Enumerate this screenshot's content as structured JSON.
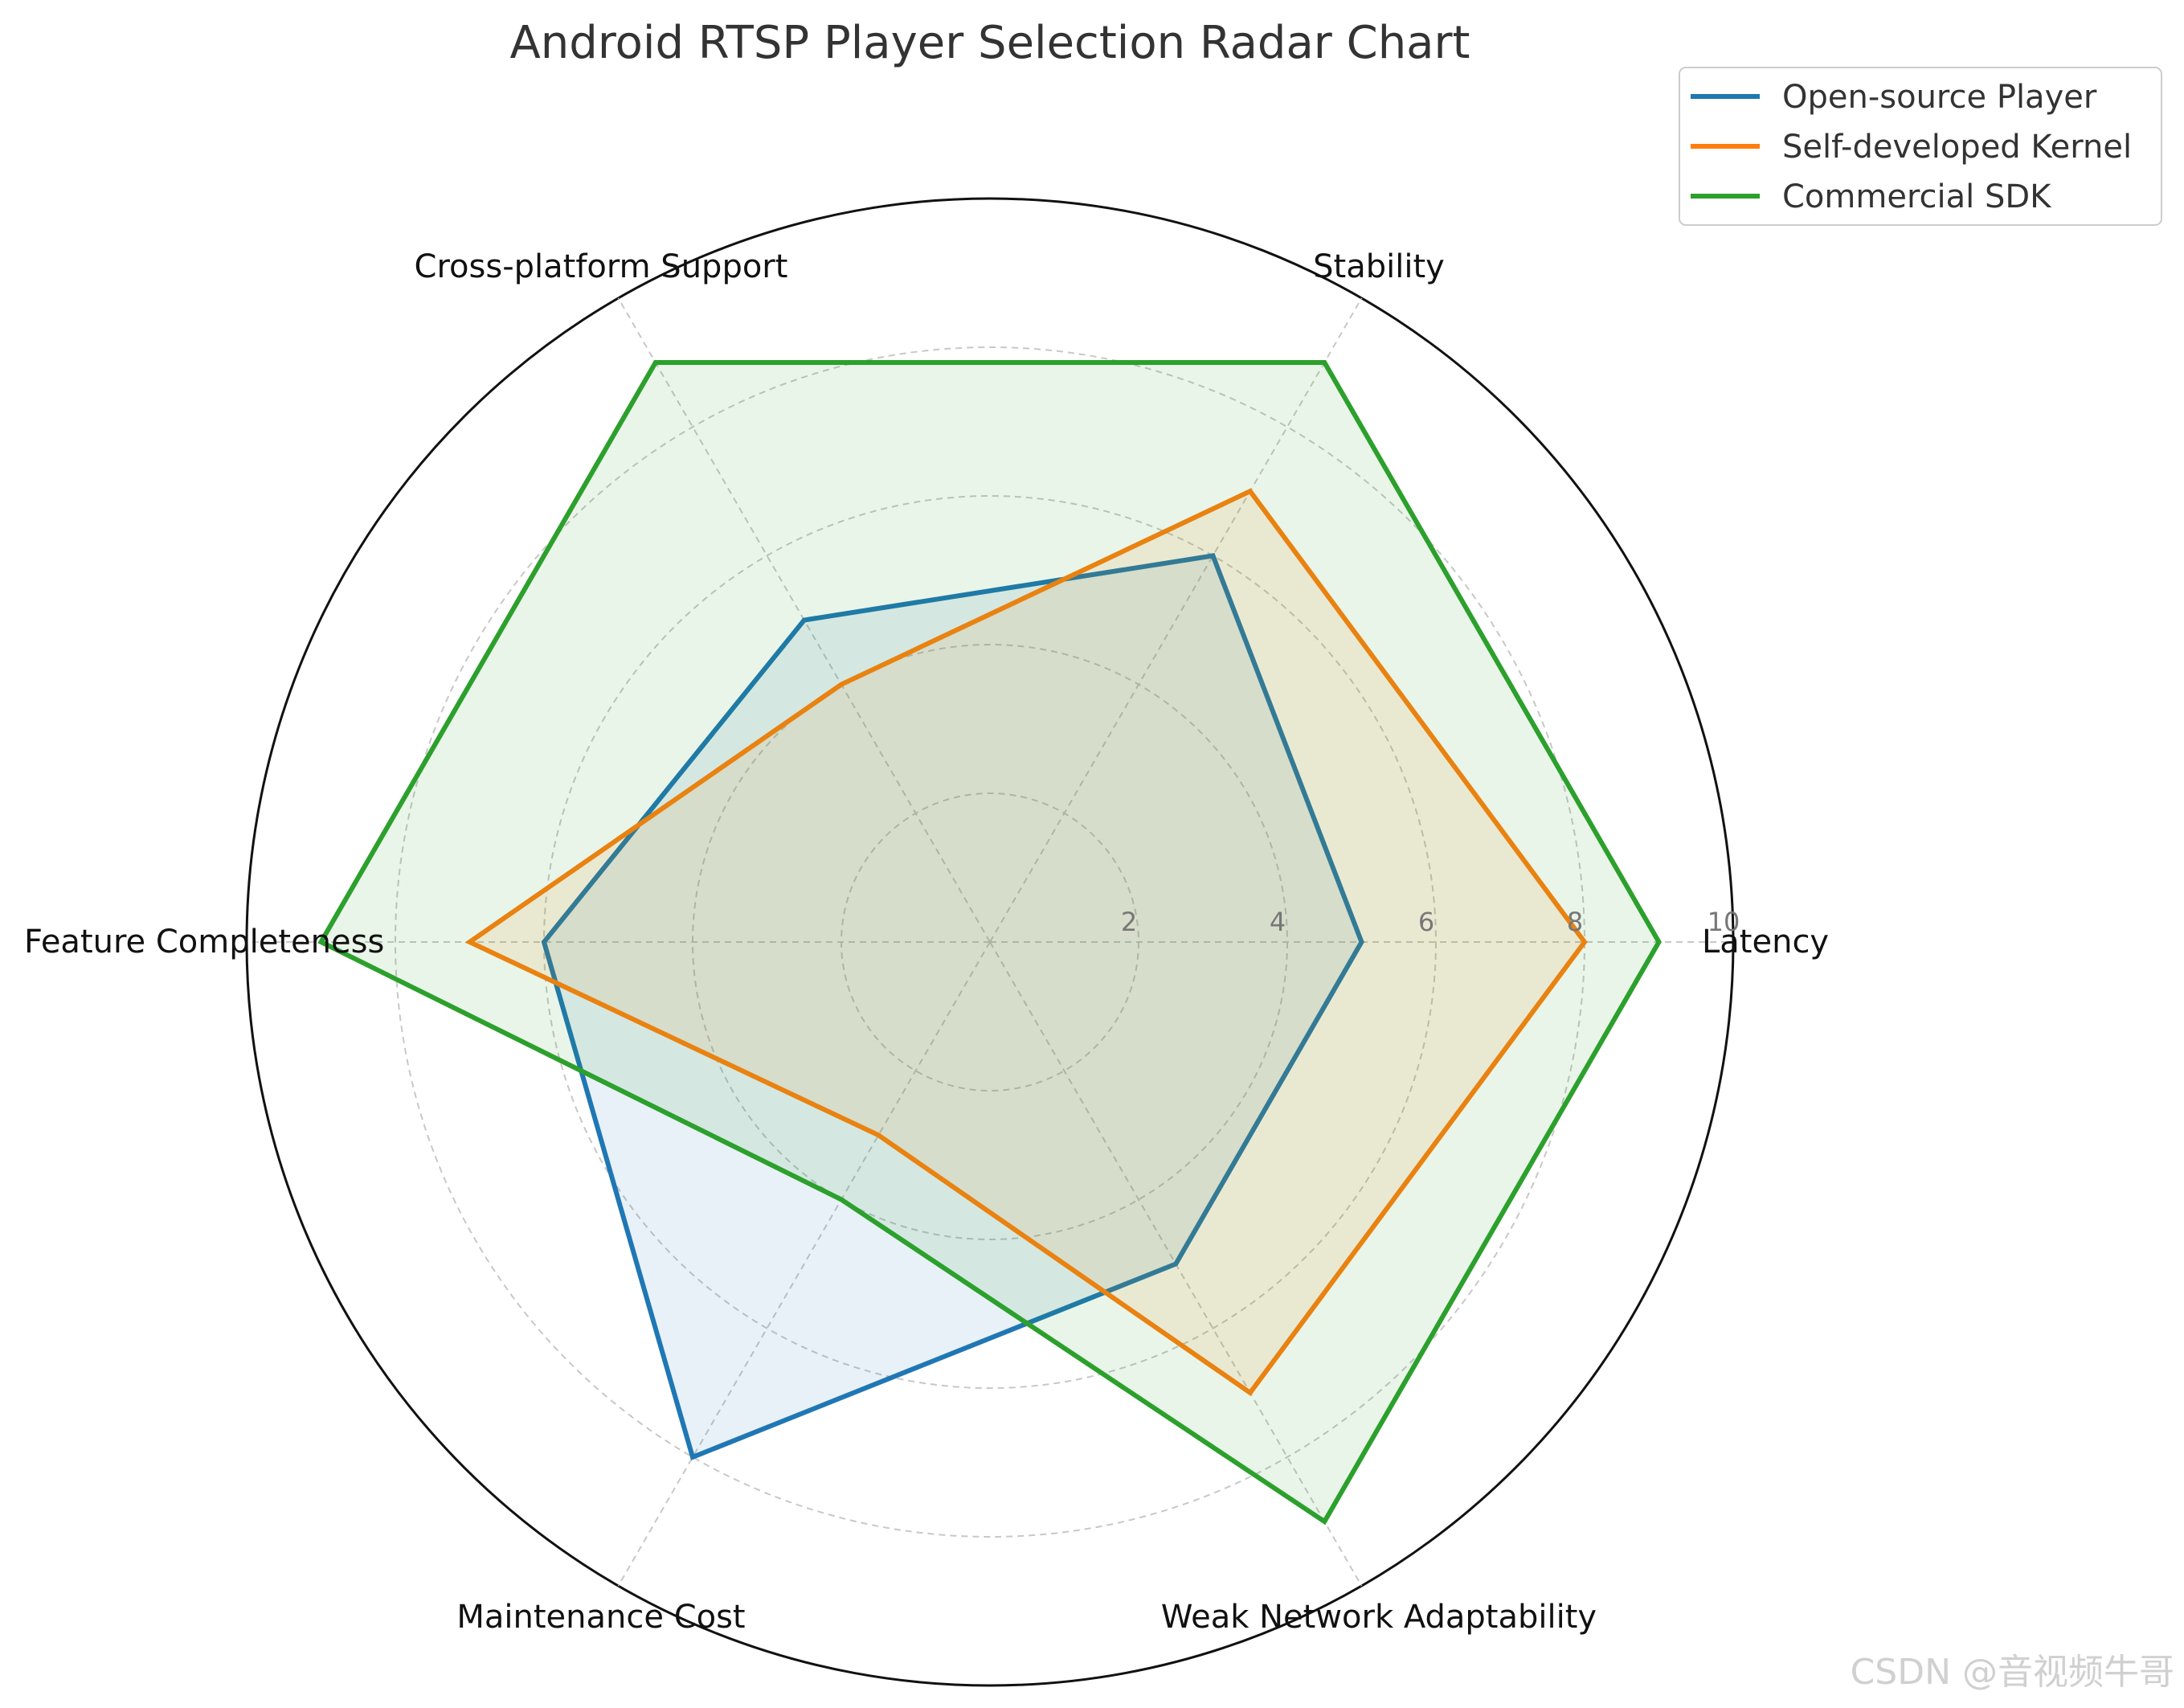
{
  "chart_data": {
    "type": "radar",
    "title": "Android RTSP Player Selection Radar Chart",
    "axes": [
      "Latency",
      "Stability",
      "Cross-platform Support",
      "Feature Completeness",
      "Maintenance Cost",
      "Weak Network Adaptability"
    ],
    "rlim": [
      0,
      10
    ],
    "r_ticks": [
      "2",
      "4",
      "6",
      "8",
      "10"
    ],
    "grid": true,
    "legend_position": "top-right",
    "series": [
      {
        "name": "Open-source Player",
        "color": "#1f77b4",
        "values": [
          5,
          6,
          5,
          6,
          8,
          5
        ]
      },
      {
        "name": "Self-developed Kernel",
        "color": "#ff7f0e",
        "values": [
          8,
          7,
          4,
          7,
          3,
          7
        ]
      },
      {
        "name": "Commercial SDK",
        "color": "#2ca02c",
        "values": [
          9,
          9,
          9,
          9,
          4,
          9
        ]
      }
    ]
  },
  "watermark": "CSDN @音视频牛哥"
}
